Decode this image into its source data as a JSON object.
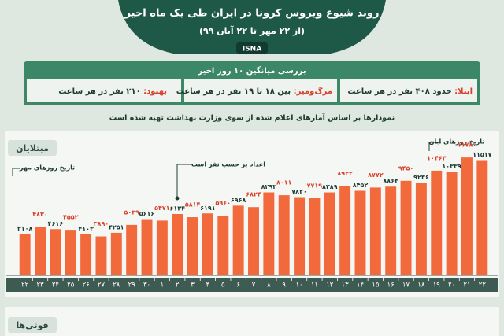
{
  "header": {
    "title": "روند شیوع ویروس کرونا در ایران طی یک ماه اخیر",
    "subtitle": "(از ۲۲ مهر تا ۲۲ آبان ۹۹)",
    "source": "ISNA"
  },
  "summary": {
    "title": "بررسی میانگین ۱۰ روز اخیر",
    "items": [
      {
        "label": "ابتلا:",
        "text": "حدود ۴۰۸ نفر در هر ساعت"
      },
      {
        "label": "مرگ‌ومیر:",
        "text": "بین ۱۸ تا ۱۹ نفر در هر ساعت"
      },
      {
        "label": "بهبود:",
        "text": "۲۱۰ نفر در هر ساعت"
      }
    ]
  },
  "note": "نمودارها بر اساس آمارهای اعلام شده از سوی وزارت بهداشت تهیه شده است",
  "chart_data": {
    "type": "bar",
    "title": "مبتلایان",
    "annotations": [
      "تاریخ روزهای آبان",
      "تاریخ روزهای مهر",
      "اعداد بر حسب نفر است"
    ],
    "categories": [
      "۲۲",
      "۲۳",
      "۲۴",
      "۲۵",
      "۲۶",
      "۲۷",
      "۲۸",
      "۲۹",
      "۳۰",
      "۱",
      "۲",
      "۳",
      "۴",
      "۵",
      "۶",
      "۷",
      "۸",
      "۹",
      "۱۰",
      "۱۱",
      "۱۲",
      "۱۳",
      "۱۴",
      "۱۵",
      "۱۶",
      "۱۷",
      "۱۸",
      "۱۹",
      "۲۰",
      "۲۱",
      "۲۲"
    ],
    "values": [
      4108,
      4830,
      4616,
      4552,
      4103,
      3890,
      4251,
      5039,
      5616,
      5471,
      6134,
      5814,
      6191,
      5960,
      6968,
      6824,
      8293,
      8011,
      7820,
      7719,
      8289,
      8932,
      8452,
      8772,
      8864,
      9450,
      9236,
      10463,
      10339,
      11780,
      11517
    ],
    "value_labels": [
      "۴۱۰۸",
      "۴۸۳۰",
      "۴۶۱۶",
      "۴۵۵۲",
      "۴۱۰۳",
      "۳۸۹۰",
      "۴۲۵۱",
      "۵۰۳۹",
      "۵۶۱۶",
      "۵۴۷۱",
      "۶۱۳۴",
      "۵۸۱۴",
      "۶۱۹۱",
      "۵۹۶۰",
      "۶۹۶۸",
      "۶۸۲۴",
      "۸۲۹۳",
      "۸۰۱۱",
      "۷۸۲۰",
      "۷۷۱۹",
      "۸۲۸۹",
      "۸۹۳۲",
      "۸۴۵۲",
      "۸۷۷۲",
      "۸۸۶۴",
      "۹۴۵۰",
      "۹۲۳۶",
      "۱۰۴۶۳",
      "۱۰۳۳۹",
      "۱۱۷۸۰",
      "۱۱۵۱۷"
    ],
    "color": "#f26a3c",
    "ylim": [
      0,
      12500
    ]
  },
  "deaths_title": "فوتی‌ها"
}
